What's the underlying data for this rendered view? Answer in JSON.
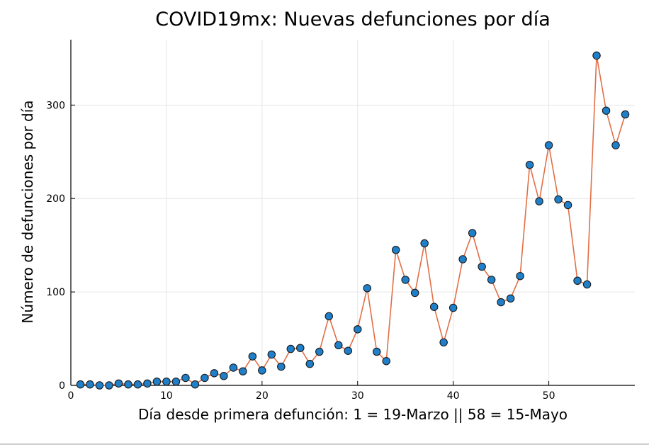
{
  "chart_data": {
    "type": "line",
    "title": "COVID19mx: Nuevas defunciones por día",
    "xlabel": "Día desde primera defunción: 1 = 19-Marzo || 58 = 15-Mayo",
    "ylabel": "Número de defunciones por día",
    "xlim": [
      0,
      59
    ],
    "ylim": [
      0,
      370
    ],
    "xticks": [
      0,
      10,
      20,
      30,
      40,
      50
    ],
    "yticks": [
      0,
      100,
      200,
      300
    ],
    "grid": true,
    "legend": "none",
    "series": [
      {
        "x": [
          1,
          2,
          3,
          4,
          5,
          6,
          7,
          8,
          9,
          10,
          11,
          12,
          13,
          14,
          15,
          16,
          17,
          18,
          19,
          20,
          21,
          22,
          23,
          24,
          25,
          26,
          27,
          28,
          29,
          30,
          31,
          32,
          33,
          34,
          35,
          36,
          37,
          38,
          39,
          40,
          41,
          42,
          43,
          44,
          45,
          46,
          47,
          48,
          49,
          50,
          51,
          52,
          53,
          54,
          55,
          56,
          57,
          58
        ],
        "values": [
          1,
          1,
          0,
          0,
          2,
          1,
          1,
          2,
          4,
          4,
          4,
          8,
          1,
          8,
          13,
          10,
          19,
          15,
          31,
          16,
          33,
          20,
          39,
          40,
          23,
          36,
          74,
          43,
          37,
          60,
          104,
          36,
          26,
          145,
          113,
          99,
          152,
          84,
          46,
          83,
          135,
          163,
          127,
          113,
          89,
          93,
          117,
          236,
          197,
          257,
          199,
          193,
          112,
          108,
          353,
          294,
          257,
          290
        ],
        "line_color": "#e26f46",
        "marker_color": "#1f7fc8",
        "marker_edge": "#1a1a1a"
      }
    ]
  }
}
